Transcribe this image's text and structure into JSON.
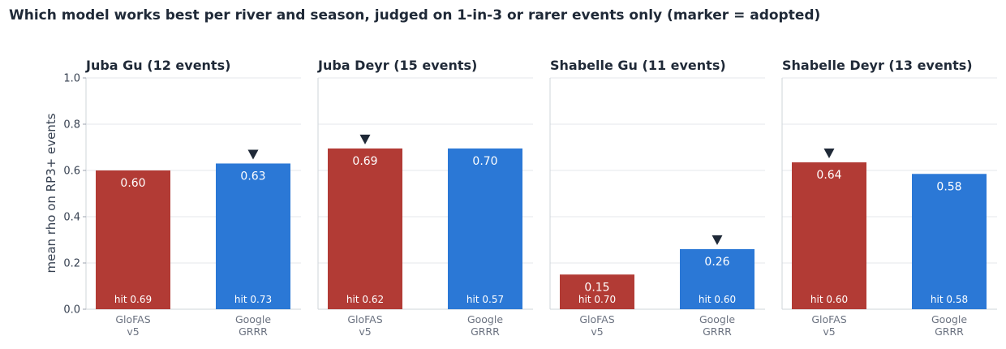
{
  "chart_data": {
    "type": "bar",
    "title": "Which model works best per river and season, judged on 1-in-3 or rarer events only (marker = adopted)",
    "ylabel": "mean rho on RP3+ events",
    "ylim": [
      0,
      1.0
    ],
    "yticks": [
      "0.0",
      "0.2",
      "0.4",
      "0.6",
      "0.8",
      "1.0"
    ],
    "grid": true,
    "colors": {
      "GloFAS v5": "#b23b35",
      "Google GRRR": "#2b78d6"
    },
    "panels": [
      {
        "title": "Juba Gu  (12 events)",
        "bars": [
          {
            "model": [
              "GloFAS",
              "v5"
            ],
            "value": 0.6,
            "label": "0.60",
            "hit": "hit 0.69",
            "adopted": false
          },
          {
            "model": [
              "Google",
              "GRRR"
            ],
            "value": 0.63,
            "label": "0.63",
            "hit": "hit 0.73",
            "adopted": true
          }
        ]
      },
      {
        "title": "Juba Deyr  (15 events)",
        "bars": [
          {
            "model": [
              "GloFAS",
              "v5"
            ],
            "value": 0.695,
            "label": "0.69",
            "hit": "hit 0.62",
            "adopted": true
          },
          {
            "model": [
              "Google",
              "GRRR"
            ],
            "value": 0.695,
            "label": "0.70",
            "hit": "hit 0.57",
            "adopted": false
          }
        ]
      },
      {
        "title": "Shabelle Gu  (11 events)",
        "bars": [
          {
            "model": [
              "GloFAS",
              "v5"
            ],
            "value": 0.15,
            "label": "0.15",
            "hit": "hit 0.70",
            "adopted": false
          },
          {
            "model": [
              "Google",
              "GRRR"
            ],
            "value": 0.26,
            "label": "0.26",
            "hit": "hit 0.60",
            "adopted": true
          }
        ]
      },
      {
        "title": "Shabelle Deyr  (13 events)",
        "bars": [
          {
            "model": [
              "GloFAS",
              "v5"
            ],
            "value": 0.635,
            "label": "0.64",
            "hit": "hit 0.60",
            "adopted": true
          },
          {
            "model": [
              "Google",
              "GRRR"
            ],
            "value": 0.585,
            "label": "0.58",
            "hit": "hit 0.58",
            "adopted": false
          }
        ]
      }
    ]
  }
}
